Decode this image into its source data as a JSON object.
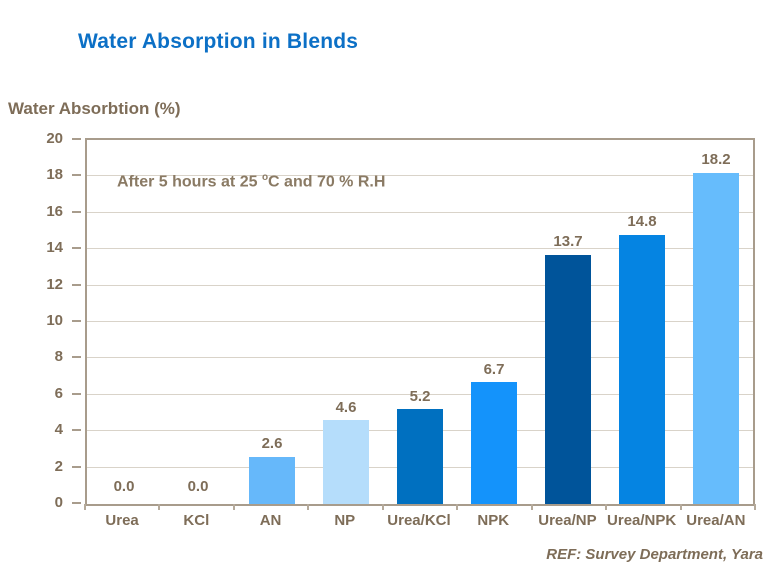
{
  "page": {
    "title": "Water Absorption in Blends",
    "footer": "REF: Survey Department,  Yara"
  },
  "colors": {
    "title_blue": "#0c70c6",
    "text_brown": "#7e6d58",
    "frame": "#a89c8c",
    "gridline": "#d9d3c9"
  },
  "chart_data": {
    "type": "bar",
    "title": "Water Absorption in Blends",
    "ylabel": "Water Absorbtion (%)",
    "xlabel": "",
    "annotation": {
      "prefix": "After 5 hours at 25 ",
      "sup": "o",
      "suffix": "C and 70 % R.H"
    },
    "categories": [
      "Urea",
      "KCl",
      "AN",
      "NP",
      "Urea/KCl",
      "NPK",
      "Urea/NP",
      "Urea/NPK",
      "Urea/AN"
    ],
    "values": [
      0.0,
      0.0,
      2.6,
      4.6,
      5.2,
      6.7,
      13.7,
      14.8,
      18.2
    ],
    "value_labels": [
      "0.0",
      "0.0",
      "2.6",
      "4.6",
      "5.2",
      "6.7",
      "13.7",
      "14.8",
      "18.2"
    ],
    "bar_colors": [
      "#66b8fa",
      "#66b8fa",
      "#66b8fa",
      "#b5ddfb",
      "#0070c0",
      "#1493fb",
      "#00549a",
      "#0584e2",
      "#66bcfc"
    ],
    "ylim": [
      0,
      20
    ],
    "ytick_step": 2,
    "grid": true,
    "legend": null,
    "footer": "REF: Survey Department,  Yara"
  }
}
